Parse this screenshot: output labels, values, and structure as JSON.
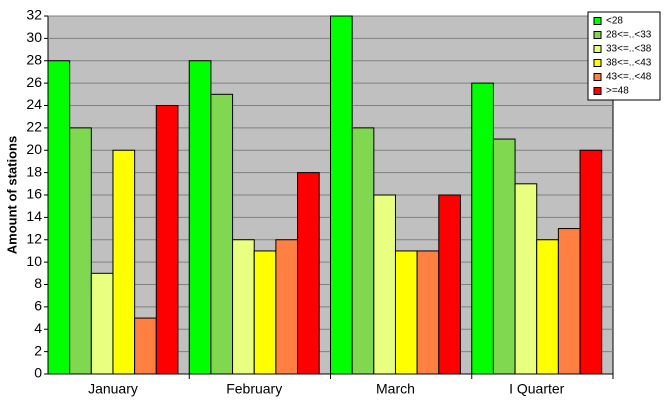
{
  "chart_data": {
    "type": "bar",
    "y_label": "Amount of stations",
    "categories": [
      "January",
      "February",
      "March",
      "I Quarter"
    ],
    "series": [
      {
        "name": "<28",
        "color": "#00ff00",
        "values": [
          28,
          28,
          32,
          26
        ]
      },
      {
        "name": "28<=..<33",
        "color": "#80d850",
        "values": [
          22,
          25,
          22,
          21
        ]
      },
      {
        "name": "33<=..<38",
        "color": "#e8ff80",
        "values": [
          9,
          12,
          16,
          17
        ]
      },
      {
        "name": "38<=..<43",
        "color": "#ffff00",
        "values": [
          20,
          11,
          11,
          12
        ]
      },
      {
        "name": "43<=..<48",
        "color": "#ff8040",
        "values": [
          5,
          12,
          11,
          13
        ]
      },
      {
        "name": ">=48",
        "color": "#ff0000",
        "values": [
          24,
          18,
          16,
          20
        ]
      }
    ],
    "ylim": [
      0,
      32
    ],
    "yticks": [
      0,
      2,
      4,
      6,
      8,
      10,
      12,
      14,
      16,
      18,
      20,
      22,
      24,
      26,
      28,
      30,
      32
    ],
    "grid": true,
    "legend": "top-right"
  }
}
